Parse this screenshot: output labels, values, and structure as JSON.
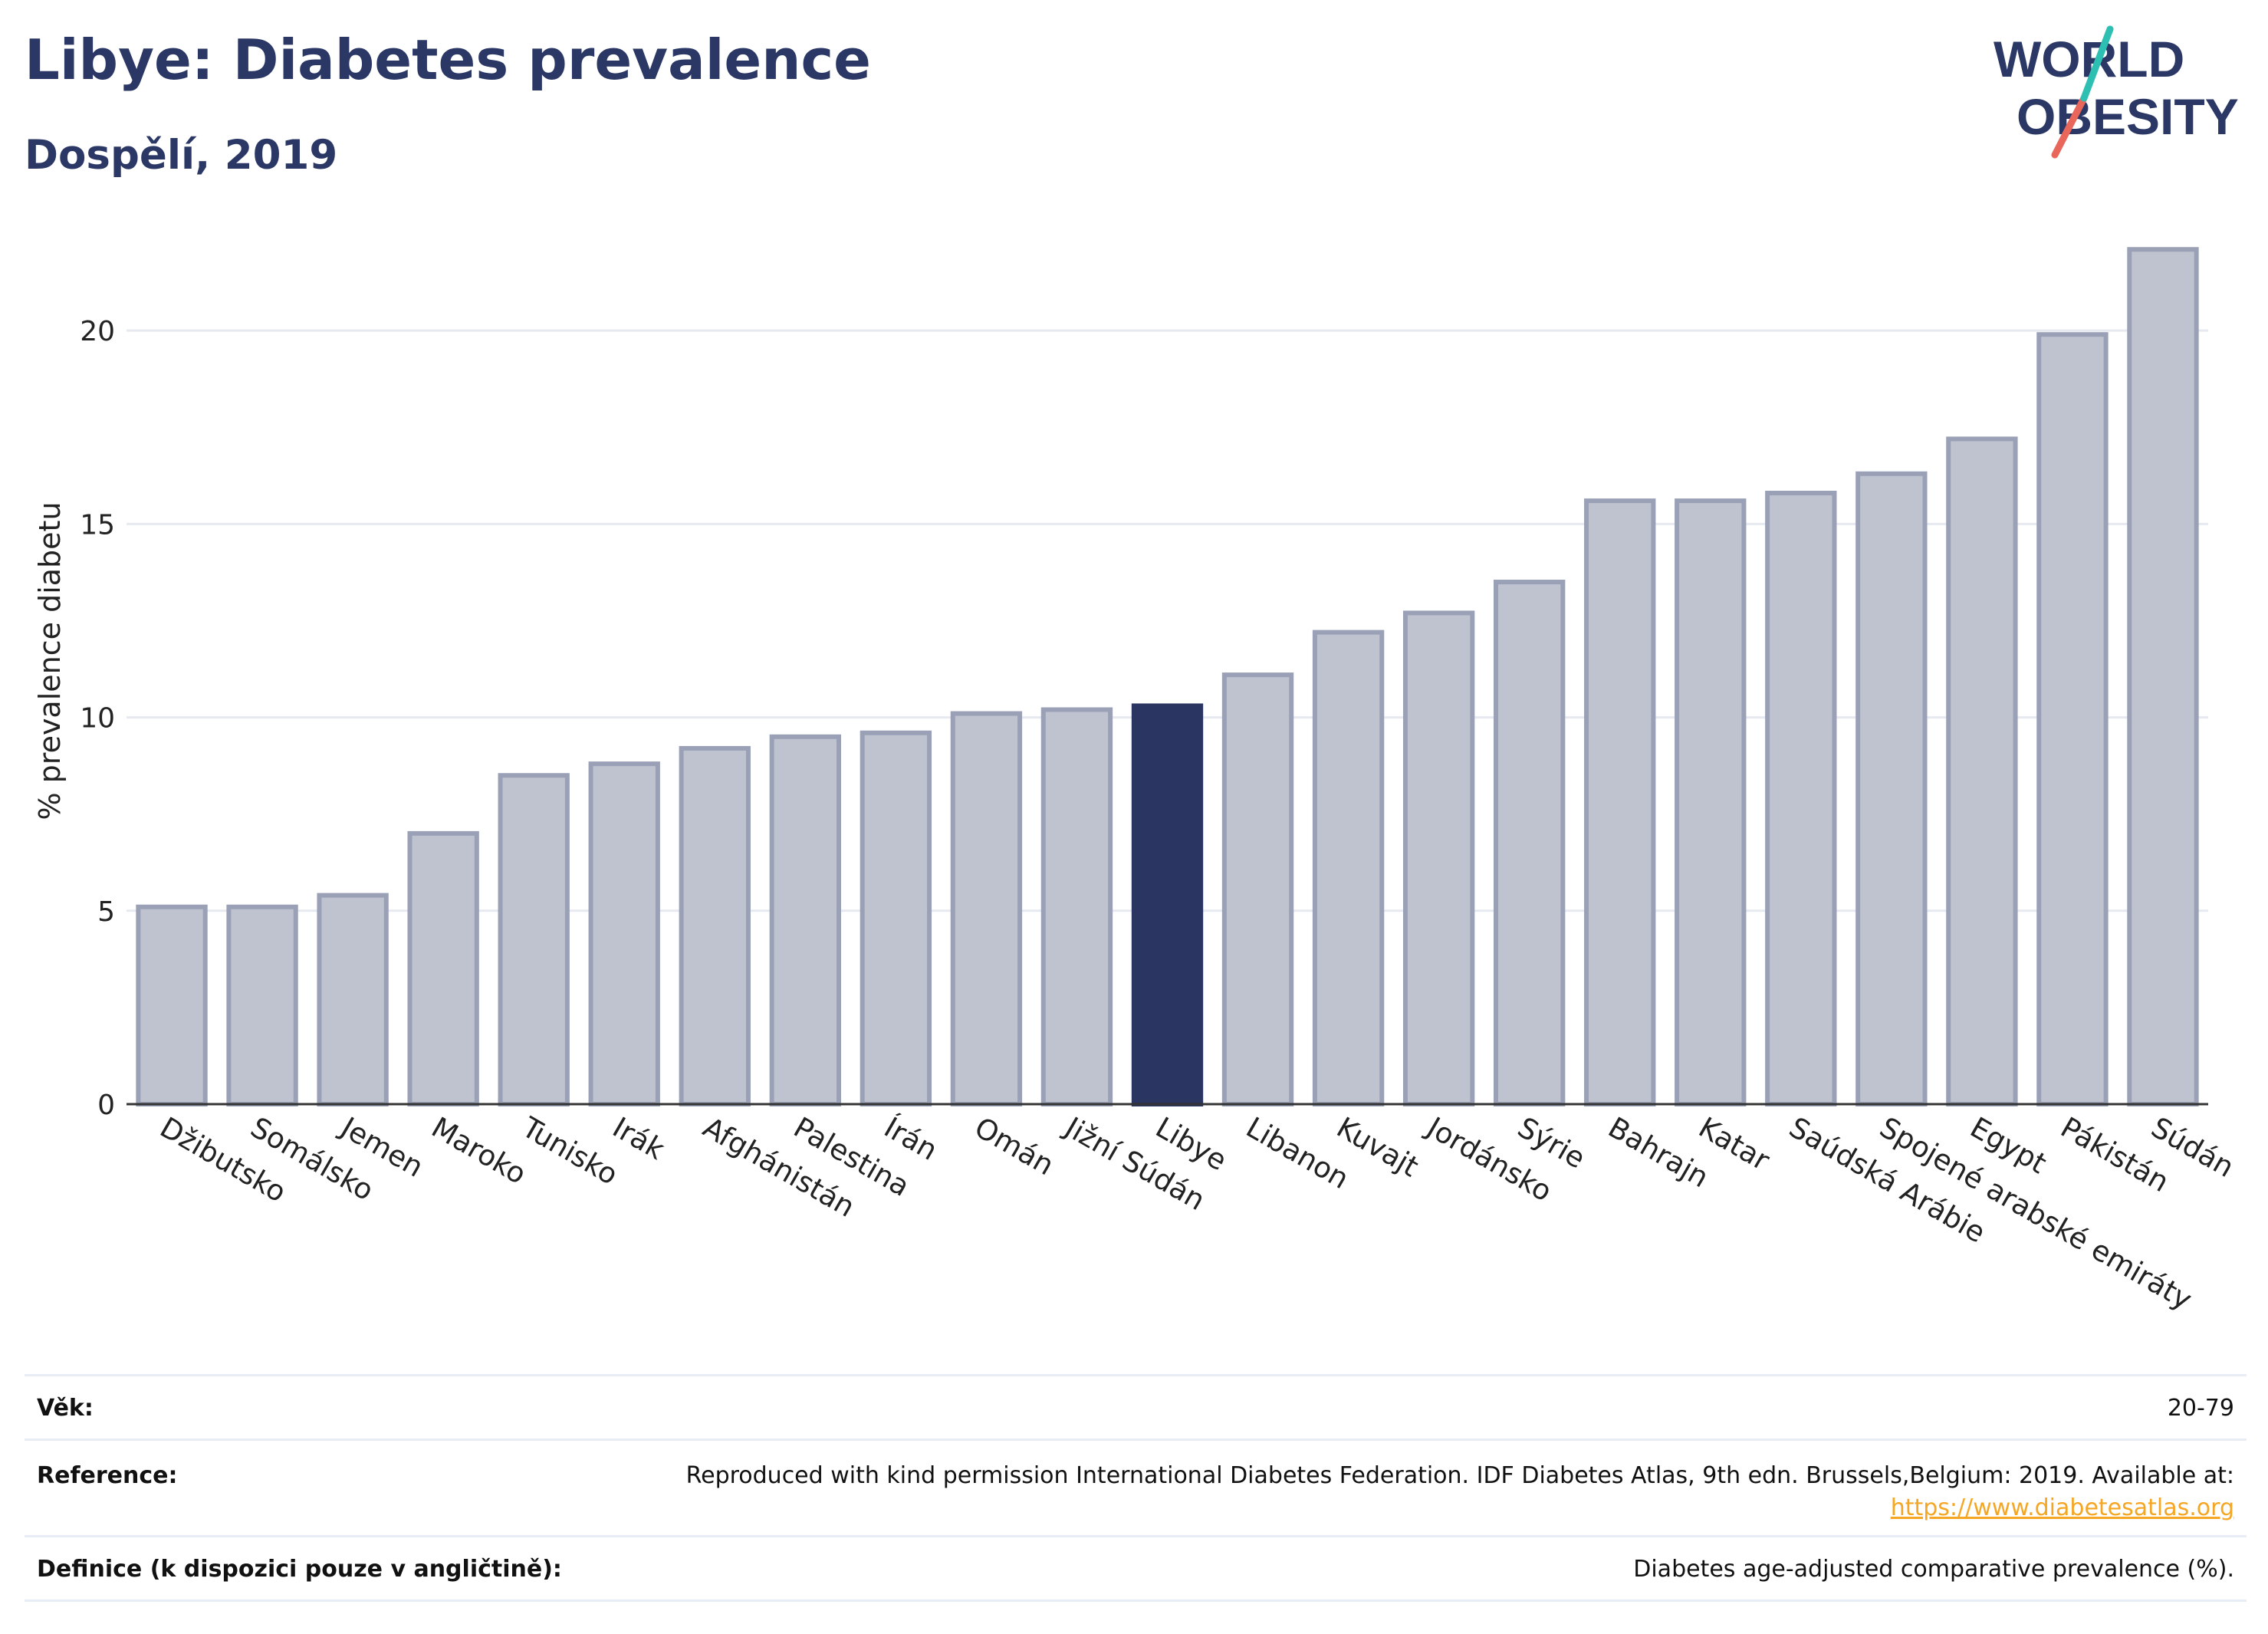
{
  "header": {
    "title": "Libye: Diabetes prevalence",
    "subtitle": "Dospělí, 2019"
  },
  "logo": {
    "line1": "WORLD",
    "line2": "OBESITY"
  },
  "chart_data": {
    "type": "bar",
    "ylabel": "% prevalence diabetu",
    "ylim": [
      0,
      22.6
    ],
    "yticks": [
      0,
      5,
      10,
      15,
      20
    ],
    "grid": true,
    "highlight": "Libye",
    "colors": {
      "bar": "#bfc3d0",
      "bar_edge": "#9aa1b7",
      "highlight": "#2b3561",
      "grid": "#e6e9f0",
      "axis": "#333333"
    },
    "categories": [
      "Džibutsko",
      "Somálsko",
      "Jemen",
      "Maroko",
      "Tunisko",
      "Irák",
      "Afghánistán",
      "Palestina",
      "Írán",
      "Omán",
      "Jižní Súdán",
      "Libye",
      "Libanon",
      "Kuvajt",
      "Jordánsko",
      "Sýrie",
      "Bahrajn",
      "Katar",
      "Saúdská Arábie",
      "Spojené arabské emiráty",
      "Egypt",
      "Pákistán",
      "Súdán"
    ],
    "values": [
      5.1,
      5.1,
      5.4,
      7.0,
      8.5,
      8.8,
      9.2,
      9.5,
      9.6,
      10.1,
      10.2,
      10.3,
      11.1,
      12.2,
      12.7,
      13.5,
      15.6,
      15.6,
      15.8,
      16.3,
      17.2,
      19.9,
      22.1
    ]
  },
  "meta": {
    "age_label": "Věk:",
    "age_value": "20-79",
    "reference_label": "Reference:",
    "reference_text": "Reproduced with kind permission International Diabetes Federation. IDF Diabetes Atlas, 9th edn. Brussels,Belgium: 2019. Available at:",
    "reference_link": "https://www.diabetesatlas.org",
    "definition_label": "Definice (k dispozici pouze v angličtině):",
    "definition_value": "Diabetes age-adjusted comparative prevalence (%)."
  }
}
